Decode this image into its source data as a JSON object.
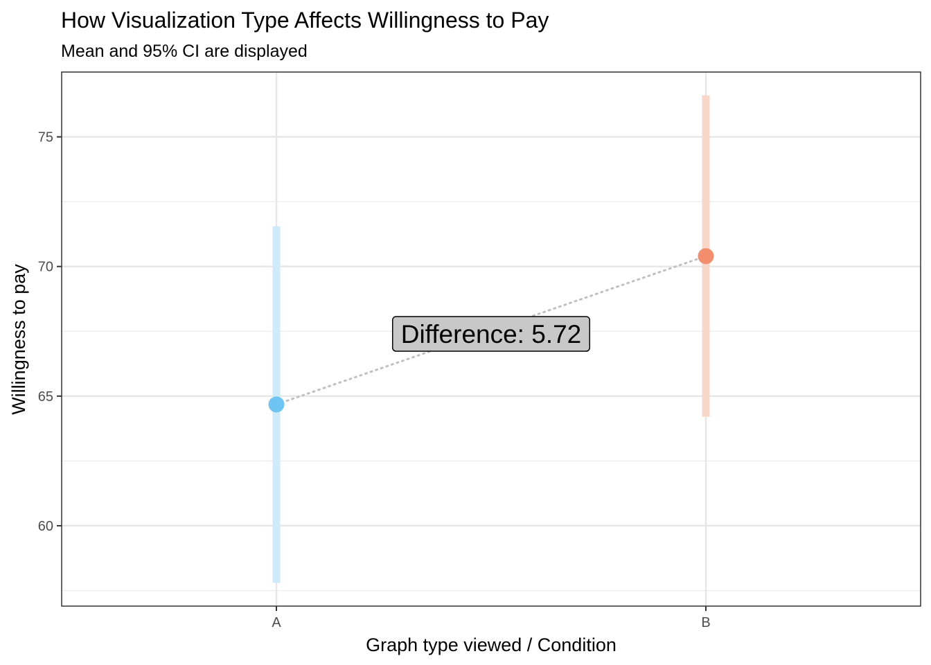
{
  "chart_data": {
    "type": "scatter",
    "title": "How Visualization Type Affects Willingness to Pay",
    "subtitle": "Mean and 95% CI are displayed",
    "xlabel": "Graph type viewed / Condition",
    "ylabel": "Willingness to pay",
    "categories": [
      "A",
      "B"
    ],
    "points": [
      {
        "category": "A",
        "mean": 64.68,
        "ci_low": 57.8,
        "ci_high": 71.55,
        "color": "#6EC5F2",
        "ci_color": "#CDEBFB"
      },
      {
        "category": "B",
        "mean": 70.4,
        "ci_low": 64.2,
        "ci_high": 76.6,
        "color": "#F28E6B",
        "ci_color": "#F8D7C9"
      }
    ],
    "yticks": [
      "60",
      "65",
      "70",
      "75"
    ],
    "ylim": [
      56.9,
      77.5
    ],
    "annotation": {
      "text": "Difference: 5.72",
      "x_position": 1.5,
      "y": 67.4,
      "background": "#C8C8C8"
    },
    "connector": {
      "style": "dotted",
      "color": "#C0C0C0"
    },
    "grid": true,
    "theme": "bw"
  }
}
